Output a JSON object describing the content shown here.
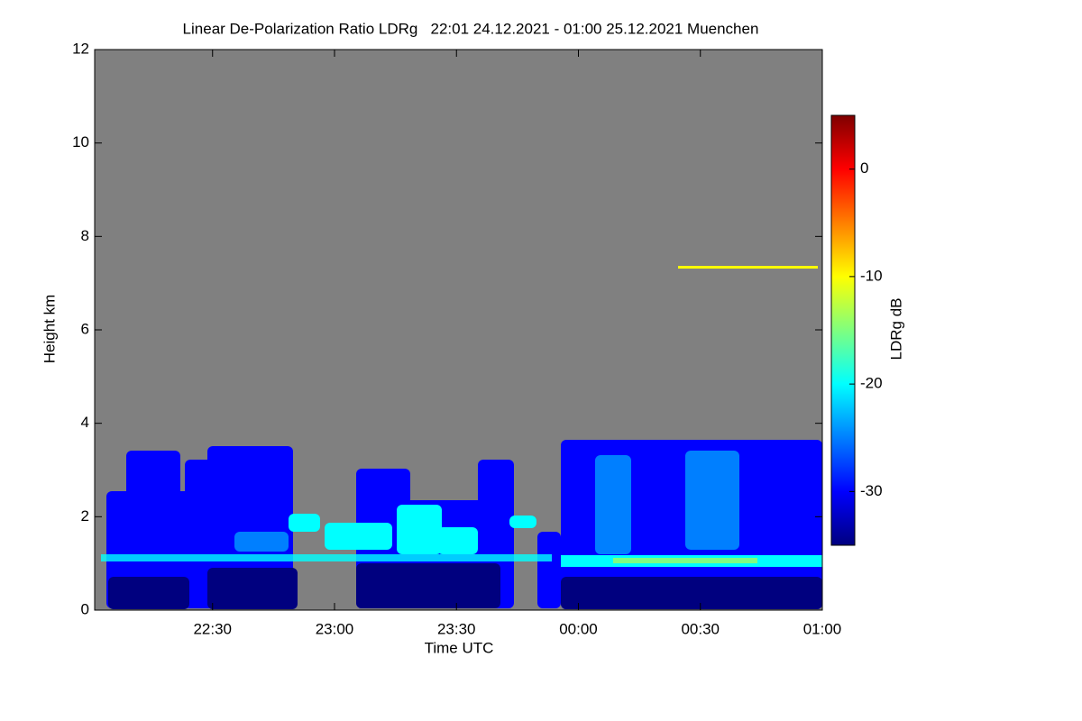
{
  "chart_data": {
    "type": "heatmap",
    "title": "Linear De-Polarization Ratio LDRg   22:01 24.12.2021 - 01:00 25.12.2021 Muenchen",
    "x_label": "Time UTC",
    "y_label": "Height km",
    "colorbar_label": "LDRg dB",
    "xlim": [
      1,
      180
    ],
    "xticks": [
      {
        "value": 30,
        "label": "22:30"
      },
      {
        "value": 60,
        "label": "23:00"
      },
      {
        "value": 90,
        "label": "23:30"
      },
      {
        "value": 120,
        "label": "00:00"
      },
      {
        "value": 150,
        "label": "00:30"
      },
      {
        "value": 180,
        "label": "01:00"
      }
    ],
    "ylim": [
      0,
      12
    ],
    "yticks": [
      0,
      2,
      4,
      6,
      8,
      10,
      12
    ],
    "clim": [
      -35,
      5
    ],
    "cticks": [
      0,
      -10,
      -20,
      -30
    ],
    "colormap": [
      "#00007f",
      "#0000ff",
      "#007fff",
      "#00ffff",
      "#7fff7f",
      "#ffff00",
      "#ff7f00",
      "#ff0000",
      "#7f0000"
    ],
    "background": "#808080"
  }
}
